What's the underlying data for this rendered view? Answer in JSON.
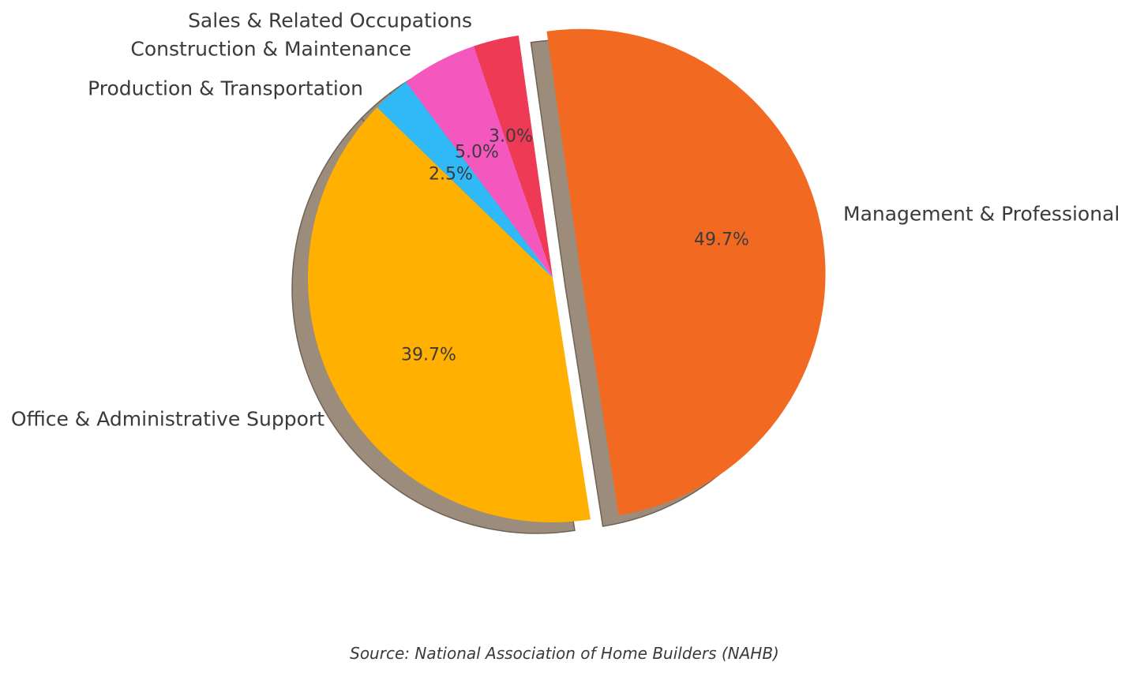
{
  "chart_data": {
    "type": "pie",
    "title": "",
    "slices": [
      {
        "label": "Management & Professional",
        "value": 49.7,
        "pct_label": "49.7%",
        "color": "#F26A21"
      },
      {
        "label": "Office & Administrative Support",
        "value": 39.7,
        "pct_label": "39.7%",
        "color": "#FFB000"
      },
      {
        "label": "Production & Transportation",
        "value": 2.5,
        "pct_label": "2.5%",
        "color": "#2FB9F7"
      },
      {
        "label": "Construction & Maintenance",
        "value": 5.0,
        "pct_label": "5.0%",
        "color": "#F457BD"
      },
      {
        "label": "Sales & Related Occupations",
        "value": 3.0,
        "pct_label": "3.0%",
        "color": "#EF3A55"
      }
    ],
    "exploded_slice": "Management & Professional",
    "startangle": 98,
    "direction": "clockwise",
    "shadow": true,
    "shadow_color": "#9B8C7C",
    "shadow_edge_color": "#6F6253",
    "label_color": "#3A3A3A",
    "background": "#FFFFFF",
    "legend_position": "none",
    "source_note": "Source: National Association of Home Builders (NAHB)"
  }
}
